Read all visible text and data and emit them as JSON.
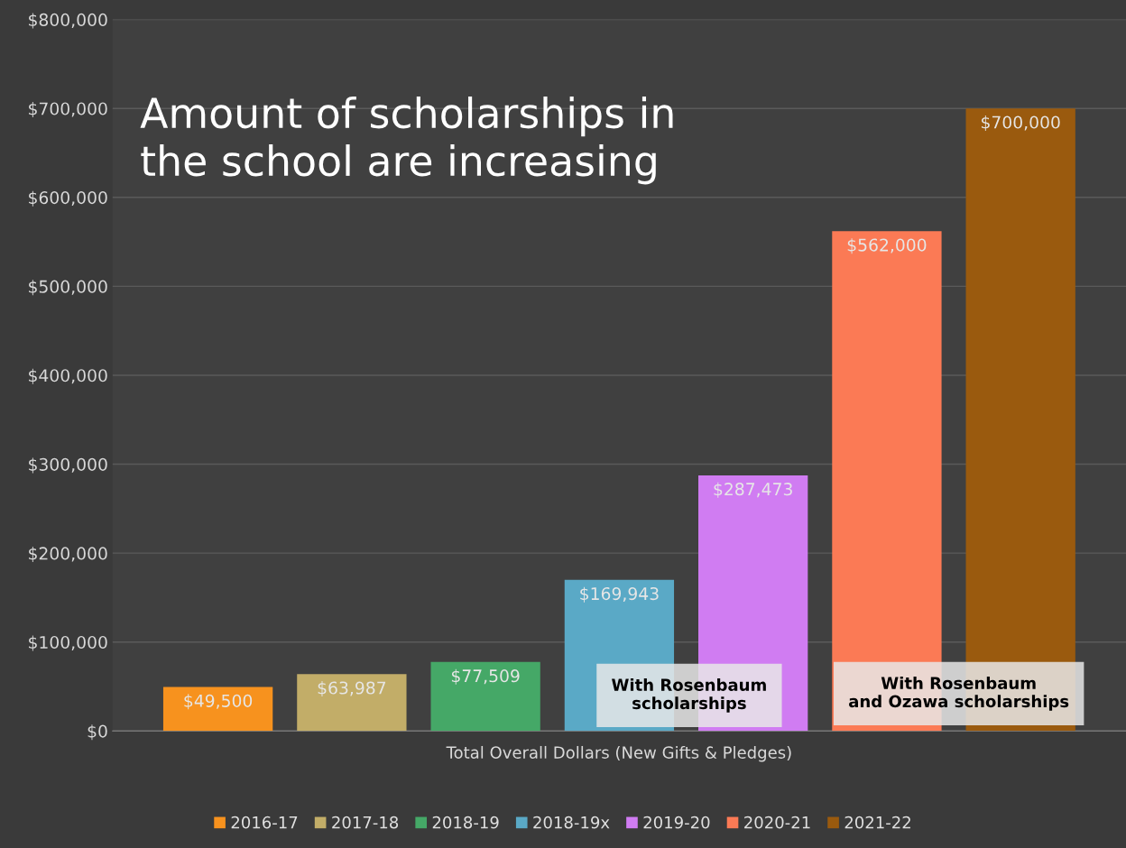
{
  "chart_data": {
    "type": "bar",
    "title": "Amount of scholarships in\nthe school are increasing",
    "categories": [
      "Total Overall Dollars (New Gifts & Pledges)"
    ],
    "series": [
      {
        "name": "2016-17",
        "color": "#f7921e",
        "values": [
          49500
        ],
        "value_labels": [
          "$49,500"
        ]
      },
      {
        "name": "2017-18",
        "color": "#c2ad68",
        "values": [
          63987
        ],
        "value_labels": [
          "$63,987"
        ]
      },
      {
        "name": "2018-19",
        "color": "#45a867",
        "values": [
          77509
        ],
        "value_labels": [
          "$77,509"
        ]
      },
      {
        "name": "2018-19x",
        "color": "#5aa9c6",
        "values": [
          169943
        ],
        "value_labels": [
          "$169,943"
        ]
      },
      {
        "name": "2019-20",
        "color": "#d07cf2",
        "values": [
          287473
        ],
        "value_labels": [
          "$287,473"
        ]
      },
      {
        "name": "2020-21",
        "color": "#fb7a55",
        "values": [
          562000
        ],
        "value_labels": [
          "$562,000"
        ]
      },
      {
        "name": "2021-22",
        "color": "#9a5a0e",
        "values": [
          700000
        ],
        "value_labels": [
          "$700,000"
        ]
      }
    ],
    "ylim": [
      0,
      800000
    ],
    "yticks": [
      {
        "value": 0,
        "label": "$0"
      },
      {
        "value": 100000,
        "label": "$100,000"
      },
      {
        "value": 200000,
        "label": "$200,000"
      },
      {
        "value": 300000,
        "label": "$300,000"
      },
      {
        "value": 400000,
        "label": "$400,000"
      },
      {
        "value": 500000,
        "label": "$500,000"
      },
      {
        "value": 600000,
        "label": "$600,000"
      },
      {
        "value": 700000,
        "label": "$700,000"
      },
      {
        "value": 800000,
        "label": "$800,000"
      }
    ],
    "grid": "y",
    "legend": "bottom",
    "annotations": [
      "With Rosenbaum\nscholarships",
      "With Rosenbaum\nand Ozawa scholarships"
    ]
  }
}
